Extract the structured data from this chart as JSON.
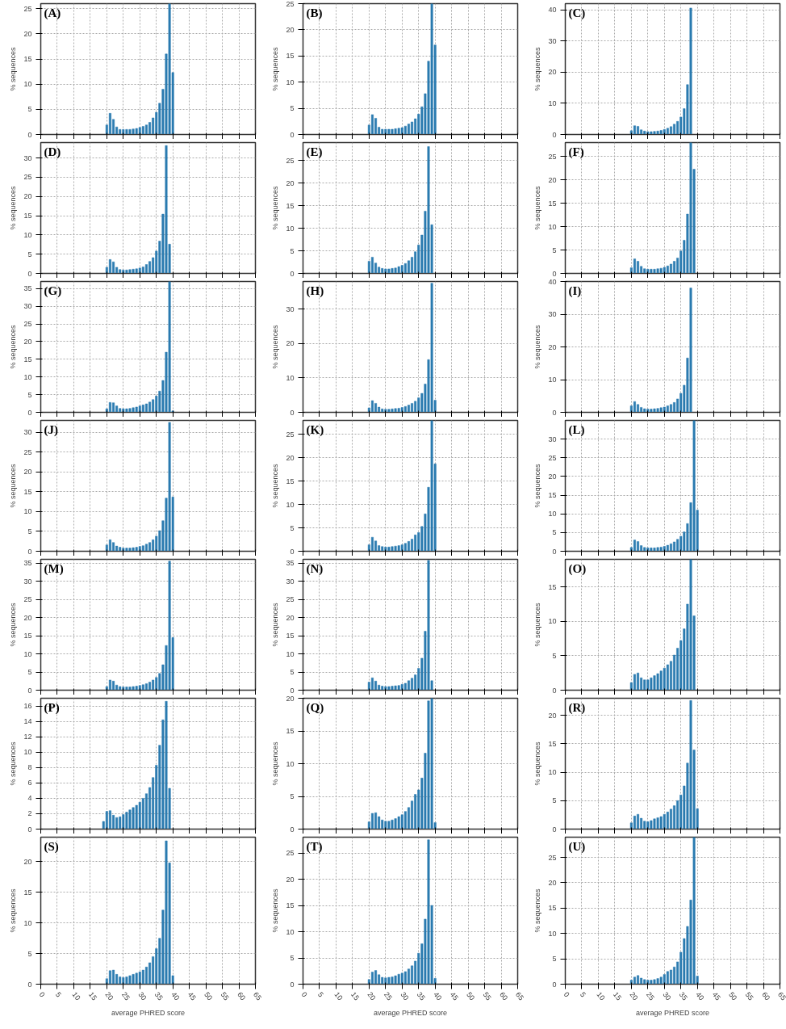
{
  "chart_data": [
    {
      "type": "bar",
      "title": "(A)",
      "ylabel": "% sequences",
      "x": [
        20,
        21,
        22,
        23,
        24,
        25,
        26,
        27,
        28,
        29,
        30,
        31,
        32,
        33,
        34,
        35,
        36,
        37,
        38,
        39,
        40
      ],
      "values": [
        1.9,
        4.2,
        3.0,
        1.5,
        1.0,
        1.0,
        1.0,
        1.0,
        1.1,
        1.2,
        1.4,
        1.6,
        1.9,
        2.4,
        3.3,
        4.4,
        6.2,
        9.0,
        16.0,
        26,
        12.3
      ],
      "color": "#2a7bb0",
      "xlim": [
        0,
        65
      ],
      "xticks": [
        0,
        5,
        10,
        15,
        20,
        25,
        30,
        35,
        40,
        45,
        50,
        55,
        60,
        65
      ],
      "ylim": [
        0,
        26
      ],
      "yticks": [
        0,
        5,
        10,
        15,
        20,
        25
      ],
      "grid": true,
      "tick_labels": "y"
    },
    {
      "type": "bar",
      "title": "(B)",
      "ylabel": "% sequences",
      "x": [
        20,
        21,
        22,
        23,
        24,
        25,
        26,
        27,
        28,
        29,
        30,
        31,
        32,
        33,
        34,
        35,
        36,
        37,
        38,
        39,
        40
      ],
      "values": [
        1.8,
        3.8,
        3.1,
        1.4,
        1.0,
        1.0,
        1.0,
        1.0,
        1.1,
        1.2,
        1.3,
        1.6,
        2.0,
        2.4,
        3.0,
        3.9,
        5.3,
        7.8,
        14.0,
        25,
        17.1
      ],
      "color": "#2a7bb0",
      "xlim": [
        0,
        65
      ],
      "xticks": [
        0,
        5,
        10,
        15,
        20,
        25,
        30,
        35,
        40,
        45,
        50,
        55,
        60,
        65
      ],
      "ylim": [
        0,
        25
      ],
      "yticks": [
        0,
        5,
        10,
        15,
        20,
        25
      ],
      "grid": true,
      "tick_labels": "y"
    },
    {
      "type": "bar",
      "title": "(C)",
      "ylabel": "% sequences",
      "x": [
        20,
        21,
        22,
        23,
        24,
        25,
        26,
        27,
        28,
        29,
        30,
        31,
        32,
        33,
        34,
        35,
        36,
        37,
        38
      ],
      "values": [
        1.2,
        2.8,
        2.6,
        1.5,
        1.1,
        0.9,
        0.9,
        1.0,
        1.1,
        1.3,
        1.6,
        2.0,
        2.5,
        3.3,
        4.2,
        5.6,
        8.3,
        16.0,
        40.6
      ],
      "color": "#2a7bb0",
      "xlim": [
        0,
        65
      ],
      "xticks": [
        0,
        5,
        10,
        15,
        20,
        25,
        30,
        35,
        40,
        45,
        50,
        55,
        60,
        65
      ],
      "ylim": [
        0,
        42
      ],
      "yticks": [
        0,
        10,
        20,
        30,
        40
      ],
      "grid": true,
      "tick_labels": "y"
    },
    {
      "type": "bar",
      "title": "(D)",
      "ylabel": "% sequences",
      "x": [
        20,
        21,
        22,
        23,
        24,
        25,
        26,
        27,
        28,
        29,
        30,
        31,
        32,
        33,
        34,
        35,
        36,
        37,
        38,
        39
      ],
      "values": [
        1.6,
        3.6,
        3.0,
        1.6,
        1.0,
        0.9,
        0.9,
        1.0,
        1.1,
        1.2,
        1.4,
        1.7,
        2.3,
        3.1,
        4.1,
        5.8,
        8.4,
        15.4,
        33.2,
        7.6
      ],
      "color": "#2a7bb0",
      "xlim": [
        0,
        65
      ],
      "xticks": [
        0,
        5,
        10,
        15,
        20,
        25,
        30,
        35,
        40,
        45,
        50,
        55,
        60,
        65
      ],
      "ylim": [
        0,
        34
      ],
      "yticks": [
        0,
        5,
        10,
        15,
        20,
        25,
        30
      ],
      "grid": true,
      "tick_labels": "y"
    },
    {
      "type": "bar",
      "title": "(E)",
      "ylabel": "% sequences",
      "x": [
        20,
        21,
        22,
        23,
        24,
        25,
        26,
        27,
        28,
        29,
        30,
        31,
        32,
        33,
        34,
        35,
        36,
        37,
        38,
        39
      ],
      "values": [
        2.7,
        3.6,
        2.3,
        1.4,
        1.1,
        1.0,
        1.0,
        1.1,
        1.2,
        1.5,
        1.8,
        2.2,
        2.8,
        3.6,
        4.8,
        6.3,
        8.5,
        13.8,
        28.1,
        10.8
      ],
      "color": "#2a7bb0",
      "xlim": [
        0,
        65
      ],
      "xticks": [
        0,
        5,
        10,
        15,
        20,
        25,
        30,
        35,
        40,
        45,
        50,
        55,
        60,
        65
      ],
      "ylim": [
        0,
        29
      ],
      "yticks": [
        0,
        5,
        10,
        15,
        20,
        25
      ],
      "grid": true,
      "tick_labels": "y"
    },
    {
      "type": "bar",
      "title": "(F)",
      "ylabel": "% sequences",
      "x": [
        20,
        21,
        22,
        23,
        24,
        25,
        26,
        27,
        28,
        29,
        30,
        31,
        32,
        33,
        34,
        35,
        36,
        37,
        38,
        39
      ],
      "values": [
        1.2,
        3.1,
        2.6,
        1.5,
        1.0,
        0.9,
        0.9,
        0.9,
        1.0,
        1.1,
        1.3,
        1.6,
        2.0,
        2.6,
        3.3,
        4.8,
        7.1,
        12.7,
        28,
        22.3
      ],
      "color": "#2a7bb0",
      "xlim": [
        0,
        65
      ],
      "xticks": [
        0,
        5,
        10,
        15,
        20,
        25,
        30,
        35,
        40,
        45,
        50,
        55,
        60,
        65
      ],
      "ylim": [
        0,
        28
      ],
      "yticks": [
        0,
        5,
        10,
        15,
        20,
        25
      ],
      "grid": true,
      "tick_labels": "y"
    },
    {
      "type": "bar",
      "title": "(G)",
      "ylabel": "% sequences",
      "x": [
        20,
        21,
        22,
        23,
        24,
        25,
        26,
        27,
        28,
        29,
        30,
        31,
        32,
        33,
        34,
        35,
        36,
        37,
        38,
        39,
        40
      ],
      "values": [
        1.0,
        2.8,
        2.7,
        1.8,
        1.1,
        1.0,
        1.0,
        1.1,
        1.3,
        1.5,
        1.8,
        2.1,
        2.4,
        2.9,
        3.6,
        4.6,
        6.0,
        9.0,
        17.0,
        37,
        0.4
      ],
      "color": "#2a7bb0",
      "xlim": [
        0,
        65
      ],
      "xticks": [
        0,
        5,
        10,
        15,
        20,
        25,
        30,
        35,
        40,
        45,
        50,
        55,
        60,
        65
      ],
      "ylim": [
        0,
        37
      ],
      "yticks": [
        0,
        5,
        10,
        15,
        20,
        25,
        30,
        35
      ],
      "grid": true,
      "tick_labels": "y"
    },
    {
      "type": "bar",
      "title": "(H)",
      "ylabel": "% sequences",
      "x": [
        20,
        21,
        22,
        23,
        24,
        25,
        26,
        27,
        28,
        29,
        30,
        31,
        32,
        33,
        34,
        35,
        36,
        37,
        38,
        39,
        40
      ],
      "values": [
        1.3,
        3.4,
        2.6,
        1.5,
        1.0,
        0.9,
        0.9,
        1.0,
        1.1,
        1.2,
        1.4,
        1.7,
        2.1,
        2.6,
        3.2,
        4.2,
        5.5,
        8.2,
        15.3,
        37.5,
        3.5
      ],
      "color": "#2a7bb0",
      "xlim": [
        0,
        65
      ],
      "xticks": [
        0,
        5,
        10,
        15,
        20,
        25,
        30,
        35,
        40,
        45,
        50,
        55,
        60,
        65
      ],
      "ylim": [
        0,
        38
      ],
      "yticks": [
        0,
        10,
        20,
        30
      ],
      "grid": true,
      "tick_labels": "y"
    },
    {
      "type": "bar",
      "title": "(I)",
      "ylabel": "% sequences",
      "x": [
        20,
        21,
        22,
        23,
        24,
        25,
        26,
        27,
        28,
        29,
        30,
        31,
        32,
        33,
        34,
        35,
        36,
        37,
        38
      ],
      "values": [
        2.0,
        3.3,
        2.4,
        1.5,
        1.1,
        1.0,
        1.0,
        1.1,
        1.2,
        1.4,
        1.6,
        2.0,
        2.4,
        3.0,
        4.1,
        5.8,
        8.3,
        16.6,
        38.0
      ],
      "color": "#2a7bb0",
      "xlim": [
        0,
        65
      ],
      "xticks": [
        0,
        5,
        10,
        15,
        20,
        25,
        30,
        35,
        40,
        45,
        50,
        55,
        60,
        65
      ],
      "ylim": [
        0,
        40
      ],
      "yticks": [
        0,
        10,
        20,
        30,
        40
      ],
      "grid": true,
      "tick_labels": "y"
    },
    {
      "type": "bar",
      "title": "(J)",
      "ylabel": "% sequences",
      "x": [
        20,
        21,
        22,
        23,
        24,
        25,
        26,
        27,
        28,
        29,
        30,
        31,
        32,
        33,
        34,
        35,
        36,
        37,
        38,
        39,
        40
      ],
      "values": [
        1.6,
        2.9,
        2.2,
        1.3,
        1.0,
        0.8,
        0.8,
        0.8,
        0.9,
        1.0,
        1.2,
        1.4,
        1.8,
        2.2,
        2.9,
        3.8,
        5.2,
        7.7,
        13.4,
        32.5,
        13.7
      ],
      "color": "#2a7bb0",
      "xlim": [
        0,
        65
      ],
      "xticks": [
        0,
        5,
        10,
        15,
        20,
        25,
        30,
        35,
        40,
        45,
        50,
        55,
        60,
        65
      ],
      "ylim": [
        0,
        33
      ],
      "yticks": [
        0,
        5,
        10,
        15,
        20,
        25,
        30
      ],
      "grid": true,
      "tick_labels": "y"
    },
    {
      "type": "bar",
      "title": "(K)",
      "ylabel": "% sequences",
      "x": [
        20,
        21,
        22,
        23,
        24,
        25,
        26,
        27,
        28,
        29,
        30,
        31,
        32,
        33,
        34,
        35,
        36,
        37,
        38,
        39,
        40
      ],
      "values": [
        1.4,
        3.0,
        2.2,
        1.2,
        1.0,
        0.9,
        0.9,
        1.0,
        1.1,
        1.2,
        1.4,
        1.7,
        2.1,
        2.6,
        3.5,
        4.0,
        5.3,
        8.0,
        13.7,
        28,
        18.7
      ],
      "color": "#2a7bb0",
      "xlim": [
        0,
        65
      ],
      "xticks": [
        0,
        5,
        10,
        15,
        20,
        25,
        30,
        35,
        40,
        45,
        50,
        55,
        60,
        65
      ],
      "ylim": [
        0,
        28
      ],
      "yticks": [
        0,
        5,
        10,
        15,
        20,
        25
      ],
      "grid": true,
      "tick_labels": "y"
    },
    {
      "type": "bar",
      "title": "(L)",
      "ylabel": "% sequences",
      "x": [
        20,
        21,
        22,
        23,
        24,
        25,
        26,
        27,
        28,
        29,
        30,
        31,
        32,
        33,
        34,
        35,
        36,
        37,
        38,
        39,
        40
      ],
      "values": [
        1.0,
        3.0,
        2.6,
        1.5,
        1.0,
        0.9,
        0.9,
        0.9,
        1.0,
        1.1,
        1.3,
        1.6,
        2.0,
        2.5,
        3.2,
        4.0,
        5.2,
        7.4,
        13.0,
        35,
        11.0
      ],
      "color": "#2a7bb0",
      "xlim": [
        0,
        65
      ],
      "xticks": [
        0,
        5,
        10,
        15,
        20,
        25,
        30,
        35,
        40,
        45,
        50,
        55,
        60,
        65
      ],
      "ylim": [
        0,
        35
      ],
      "yticks": [
        0,
        5,
        10,
        15,
        20,
        25,
        30
      ],
      "grid": true,
      "tick_labels": "y"
    },
    {
      "type": "bar",
      "title": "(M)",
      "ylabel": "% sequences",
      "x": [
        20,
        21,
        22,
        23,
        24,
        25,
        26,
        27,
        28,
        29,
        30,
        31,
        32,
        33,
        34,
        35,
        36,
        37,
        38,
        39,
        40
      ],
      "values": [
        1.0,
        2.8,
        2.5,
        1.4,
        1.0,
        0.9,
        0.9,
        0.9,
        1.0,
        1.1,
        1.3,
        1.5,
        1.8,
        2.2,
        2.8,
        3.5,
        4.6,
        7.0,
        12.3,
        35.5,
        14.5
      ],
      "color": "#2a7bb0",
      "xlim": [
        0,
        65
      ],
      "xticks": [
        0,
        5,
        10,
        15,
        20,
        25,
        30,
        35,
        40,
        45,
        50,
        55,
        60,
        65
      ],
      "ylim": [
        0,
        36
      ],
      "yticks": [
        0,
        5,
        10,
        15,
        20,
        25,
        30,
        35
      ],
      "grid": true,
      "tick_labels": "y"
    },
    {
      "type": "bar",
      "title": "(N)",
      "ylabel": "% sequences",
      "x": [
        20,
        21,
        22,
        23,
        24,
        25,
        26,
        27,
        28,
        29,
        30,
        31,
        32,
        33,
        34,
        35,
        36,
        37,
        38,
        39
      ],
      "values": [
        2.2,
        3.4,
        2.5,
        1.4,
        1.1,
        1.0,
        1.0,
        1.1,
        1.2,
        1.3,
        1.6,
        1.9,
        2.6,
        3.3,
        4.2,
        6.0,
        8.8,
        16.2,
        35.7,
        2.6
      ],
      "color": "#2a7bb0",
      "xlim": [
        0,
        65
      ],
      "xticks": [
        0,
        5,
        10,
        15,
        20,
        25,
        30,
        35,
        40,
        45,
        50,
        55,
        60,
        65
      ],
      "ylim": [
        0,
        36
      ],
      "yticks": [
        0,
        5,
        10,
        15,
        20,
        25,
        30,
        35
      ],
      "grid": true,
      "tick_labels": "y"
    },
    {
      "type": "bar",
      "title": "(O)",
      "ylabel": "% sequences",
      "x": [
        20,
        21,
        22,
        23,
        24,
        25,
        26,
        27,
        28,
        29,
        30,
        31,
        32,
        33,
        34,
        35,
        36,
        37,
        38,
        39
      ],
      "values": [
        1.1,
        2.3,
        2.5,
        1.8,
        1.5,
        1.5,
        1.8,
        2.1,
        2.4,
        2.8,
        3.2,
        3.7,
        4.2,
        5.1,
        6.1,
        7.2,
        8.9,
        12.5,
        19,
        10.8
      ],
      "color": "#2a7bb0",
      "xlim": [
        0,
        65
      ],
      "xticks": [
        0,
        5,
        10,
        15,
        20,
        25,
        30,
        35,
        40,
        45,
        50,
        55,
        60,
        65
      ],
      "ylim": [
        0,
        19
      ],
      "yticks": [
        0,
        5,
        10,
        15
      ],
      "grid": true,
      "tick_labels": "y"
    },
    {
      "type": "bar",
      "title": "(P)",
      "ylabel": "% sequences",
      "x": [
        19,
        20,
        21,
        22,
        23,
        24,
        25,
        26,
        27,
        28,
        29,
        30,
        31,
        32,
        33,
        34,
        35,
        36,
        37,
        38,
        39
      ],
      "values": [
        1.0,
        2.3,
        2.4,
        1.8,
        1.5,
        1.6,
        1.9,
        2.2,
        2.5,
        2.8,
        3.1,
        3.5,
        4.0,
        4.6,
        5.4,
        6.7,
        8.3,
        10.9,
        14.2,
        16.6,
        5.3
      ],
      "color": "#2a7bb0",
      "xlim": [
        0,
        65
      ],
      "xticks": [
        0,
        5,
        10,
        15,
        20,
        25,
        30,
        35,
        40,
        45,
        50,
        55,
        60,
        65
      ],
      "ylim": [
        0,
        17
      ],
      "yticks": [
        0,
        2,
        4,
        6,
        8,
        10,
        12,
        14,
        16
      ],
      "grid": true,
      "tick_labels": "y"
    },
    {
      "type": "bar",
      "title": "(Q)",
      "ylabel": "% sequences",
      "x": [
        20,
        21,
        22,
        23,
        24,
        25,
        26,
        27,
        28,
        29,
        30,
        31,
        32,
        33,
        34,
        35,
        36,
        37,
        38,
        39,
        40
      ],
      "values": [
        1.1,
        2.4,
        2.5,
        1.9,
        1.4,
        1.2,
        1.2,
        1.4,
        1.6,
        1.9,
        2.2,
        2.7,
        3.3,
        4.3,
        5.3,
        6.0,
        7.8,
        11.6,
        19.6,
        20,
        1.0
      ],
      "color": "#2a7bb0",
      "xlim": [
        0,
        65
      ],
      "xticks": [
        0,
        5,
        10,
        15,
        20,
        25,
        30,
        35,
        40,
        45,
        50,
        55,
        60,
        65
      ],
      "ylim": [
        0,
        20
      ],
      "yticks": [
        0,
        5,
        10,
        15,
        20
      ],
      "grid": true,
      "tick_labels": "y"
    },
    {
      "type": "bar",
      "title": "(R)",
      "ylabel": "% sequences",
      "x": [
        20,
        21,
        22,
        23,
        24,
        25,
        26,
        27,
        28,
        29,
        30,
        31,
        32,
        33,
        34,
        35,
        36,
        37,
        38,
        39,
        40
      ],
      "values": [
        1.1,
        2.3,
        2.6,
        1.9,
        1.4,
        1.3,
        1.5,
        1.8,
        2.0,
        2.2,
        2.6,
        3.0,
        3.5,
        4.1,
        5.0,
        6.0,
        7.6,
        11.6,
        22.6,
        13.9,
        3.6
      ],
      "color": "#2a7bb0",
      "xlim": [
        0,
        65
      ],
      "xticks": [
        0,
        5,
        10,
        15,
        20,
        25,
        30,
        35,
        40,
        45,
        50,
        55,
        60,
        65
      ],
      "ylim": [
        0,
        23
      ],
      "yticks": [
        0,
        5,
        10,
        15,
        20
      ],
      "grid": true,
      "tick_labels": "y"
    },
    {
      "type": "bar",
      "title": "(S)",
      "ylabel": "% sequences",
      "xlabel": "average PHRED score",
      "x": [
        20,
        21,
        22,
        23,
        24,
        25,
        26,
        27,
        28,
        29,
        30,
        31,
        32,
        33,
        34,
        35,
        36,
        37,
        38,
        39,
        40
      ],
      "values": [
        0.9,
        2.2,
        2.3,
        1.6,
        1.2,
        1.1,
        1.2,
        1.4,
        1.6,
        1.8,
        2.0,
        2.3,
        2.8,
        3.5,
        4.5,
        5.8,
        7.5,
        12.1,
        23.4,
        19.8,
        1.4
      ],
      "color": "#2a7bb0",
      "xlim": [
        0,
        65
      ],
      "xticks": [
        0,
        5,
        10,
        15,
        20,
        25,
        30,
        35,
        40,
        45,
        50,
        55,
        60,
        65
      ],
      "ylim": [
        0,
        24
      ],
      "yticks": [
        0,
        5,
        10,
        15,
        20
      ],
      "grid": true
    },
    {
      "type": "bar",
      "title": "(T)",
      "ylabel": "% sequences",
      "xlabel": "average PHRED score",
      "x": [
        20,
        21,
        22,
        23,
        24,
        25,
        26,
        27,
        28,
        29,
        30,
        31,
        32,
        33,
        34,
        35,
        36,
        37,
        38,
        39,
        40
      ],
      "values": [
        0.9,
        2.3,
        2.6,
        1.8,
        1.3,
        1.2,
        1.3,
        1.4,
        1.6,
        1.9,
        2.1,
        2.4,
        2.9,
        3.5,
        4.4,
        5.9,
        7.7,
        12.4,
        27.5,
        15.0,
        1.1
      ],
      "color": "#2a7bb0",
      "xlim": [
        0,
        65
      ],
      "xticks": [
        0,
        5,
        10,
        15,
        20,
        25,
        30,
        35,
        40,
        45,
        50,
        55,
        60,
        65
      ],
      "ylim": [
        0,
        28
      ],
      "yticks": [
        0,
        5,
        10,
        15,
        20,
        25
      ],
      "grid": true
    },
    {
      "type": "bar",
      "title": "(U)",
      "ylabel": "% sequences",
      "xlabel": "average PHRED score",
      "x": [
        20,
        21,
        22,
        23,
        24,
        25,
        26,
        27,
        28,
        29,
        30,
        31,
        32,
        33,
        34,
        35,
        36,
        37,
        38,
        39,
        40
      ],
      "values": [
        0.8,
        1.4,
        1.7,
        1.2,
        0.9,
        0.8,
        0.8,
        0.9,
        1.1,
        1.4,
        1.9,
        2.5,
        2.8,
        3.4,
        4.4,
        6.3,
        9.0,
        11.4,
        16.6,
        29,
        1.6
      ],
      "color": "#2a7bb0",
      "xlim": [
        0,
        65
      ],
      "xticks": [
        0,
        5,
        10,
        15,
        20,
        25,
        30,
        35,
        40,
        45,
        50,
        55,
        60,
        65
      ],
      "ylim": [
        0,
        29
      ],
      "yticks": [
        0,
        5,
        10,
        15,
        20,
        25
      ],
      "grid": true
    }
  ]
}
